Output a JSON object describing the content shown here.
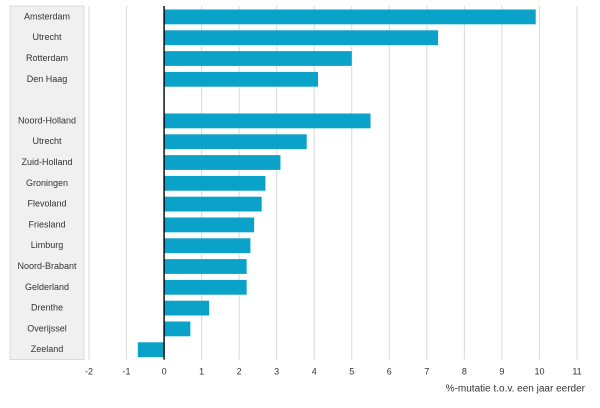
{
  "chart_data": {
    "type": "bar",
    "orientation": "horizontal",
    "categories": [
      "Amsterdam",
      "Utrecht",
      "Rotterdam",
      "Den Haag",
      "",
      "Noord-Holland",
      "Utrecht",
      "Zuid-Holland",
      "Groningen",
      "Flevoland",
      "Friesland",
      "Limburg",
      "Noord-Brabant",
      "Gelderland",
      "Drenthe",
      "Overijssel",
      "Zeeland"
    ],
    "values": [
      9.9,
      7.3,
      5.0,
      4.1,
      null,
      5.5,
      3.8,
      3.1,
      2.7,
      2.6,
      2.4,
      2.3,
      2.2,
      2.2,
      1.2,
      0.7,
      -0.7
    ],
    "xlabel": "%-mutatie t.o.v. een jaar eerder",
    "xlim": [
      -2,
      11
    ],
    "xticks": [
      "-2",
      "-1",
      "0",
      "1",
      "2",
      "3",
      "4",
      "5",
      "6",
      "7",
      "8",
      "9",
      "10",
      "11"
    ],
    "grid": "vertical",
    "colors": {
      "bar": "#0aa2c8",
      "grid": "#d9d9d9",
      "label_panel": "#f0f0f0",
      "axis": "#000000"
    }
  }
}
